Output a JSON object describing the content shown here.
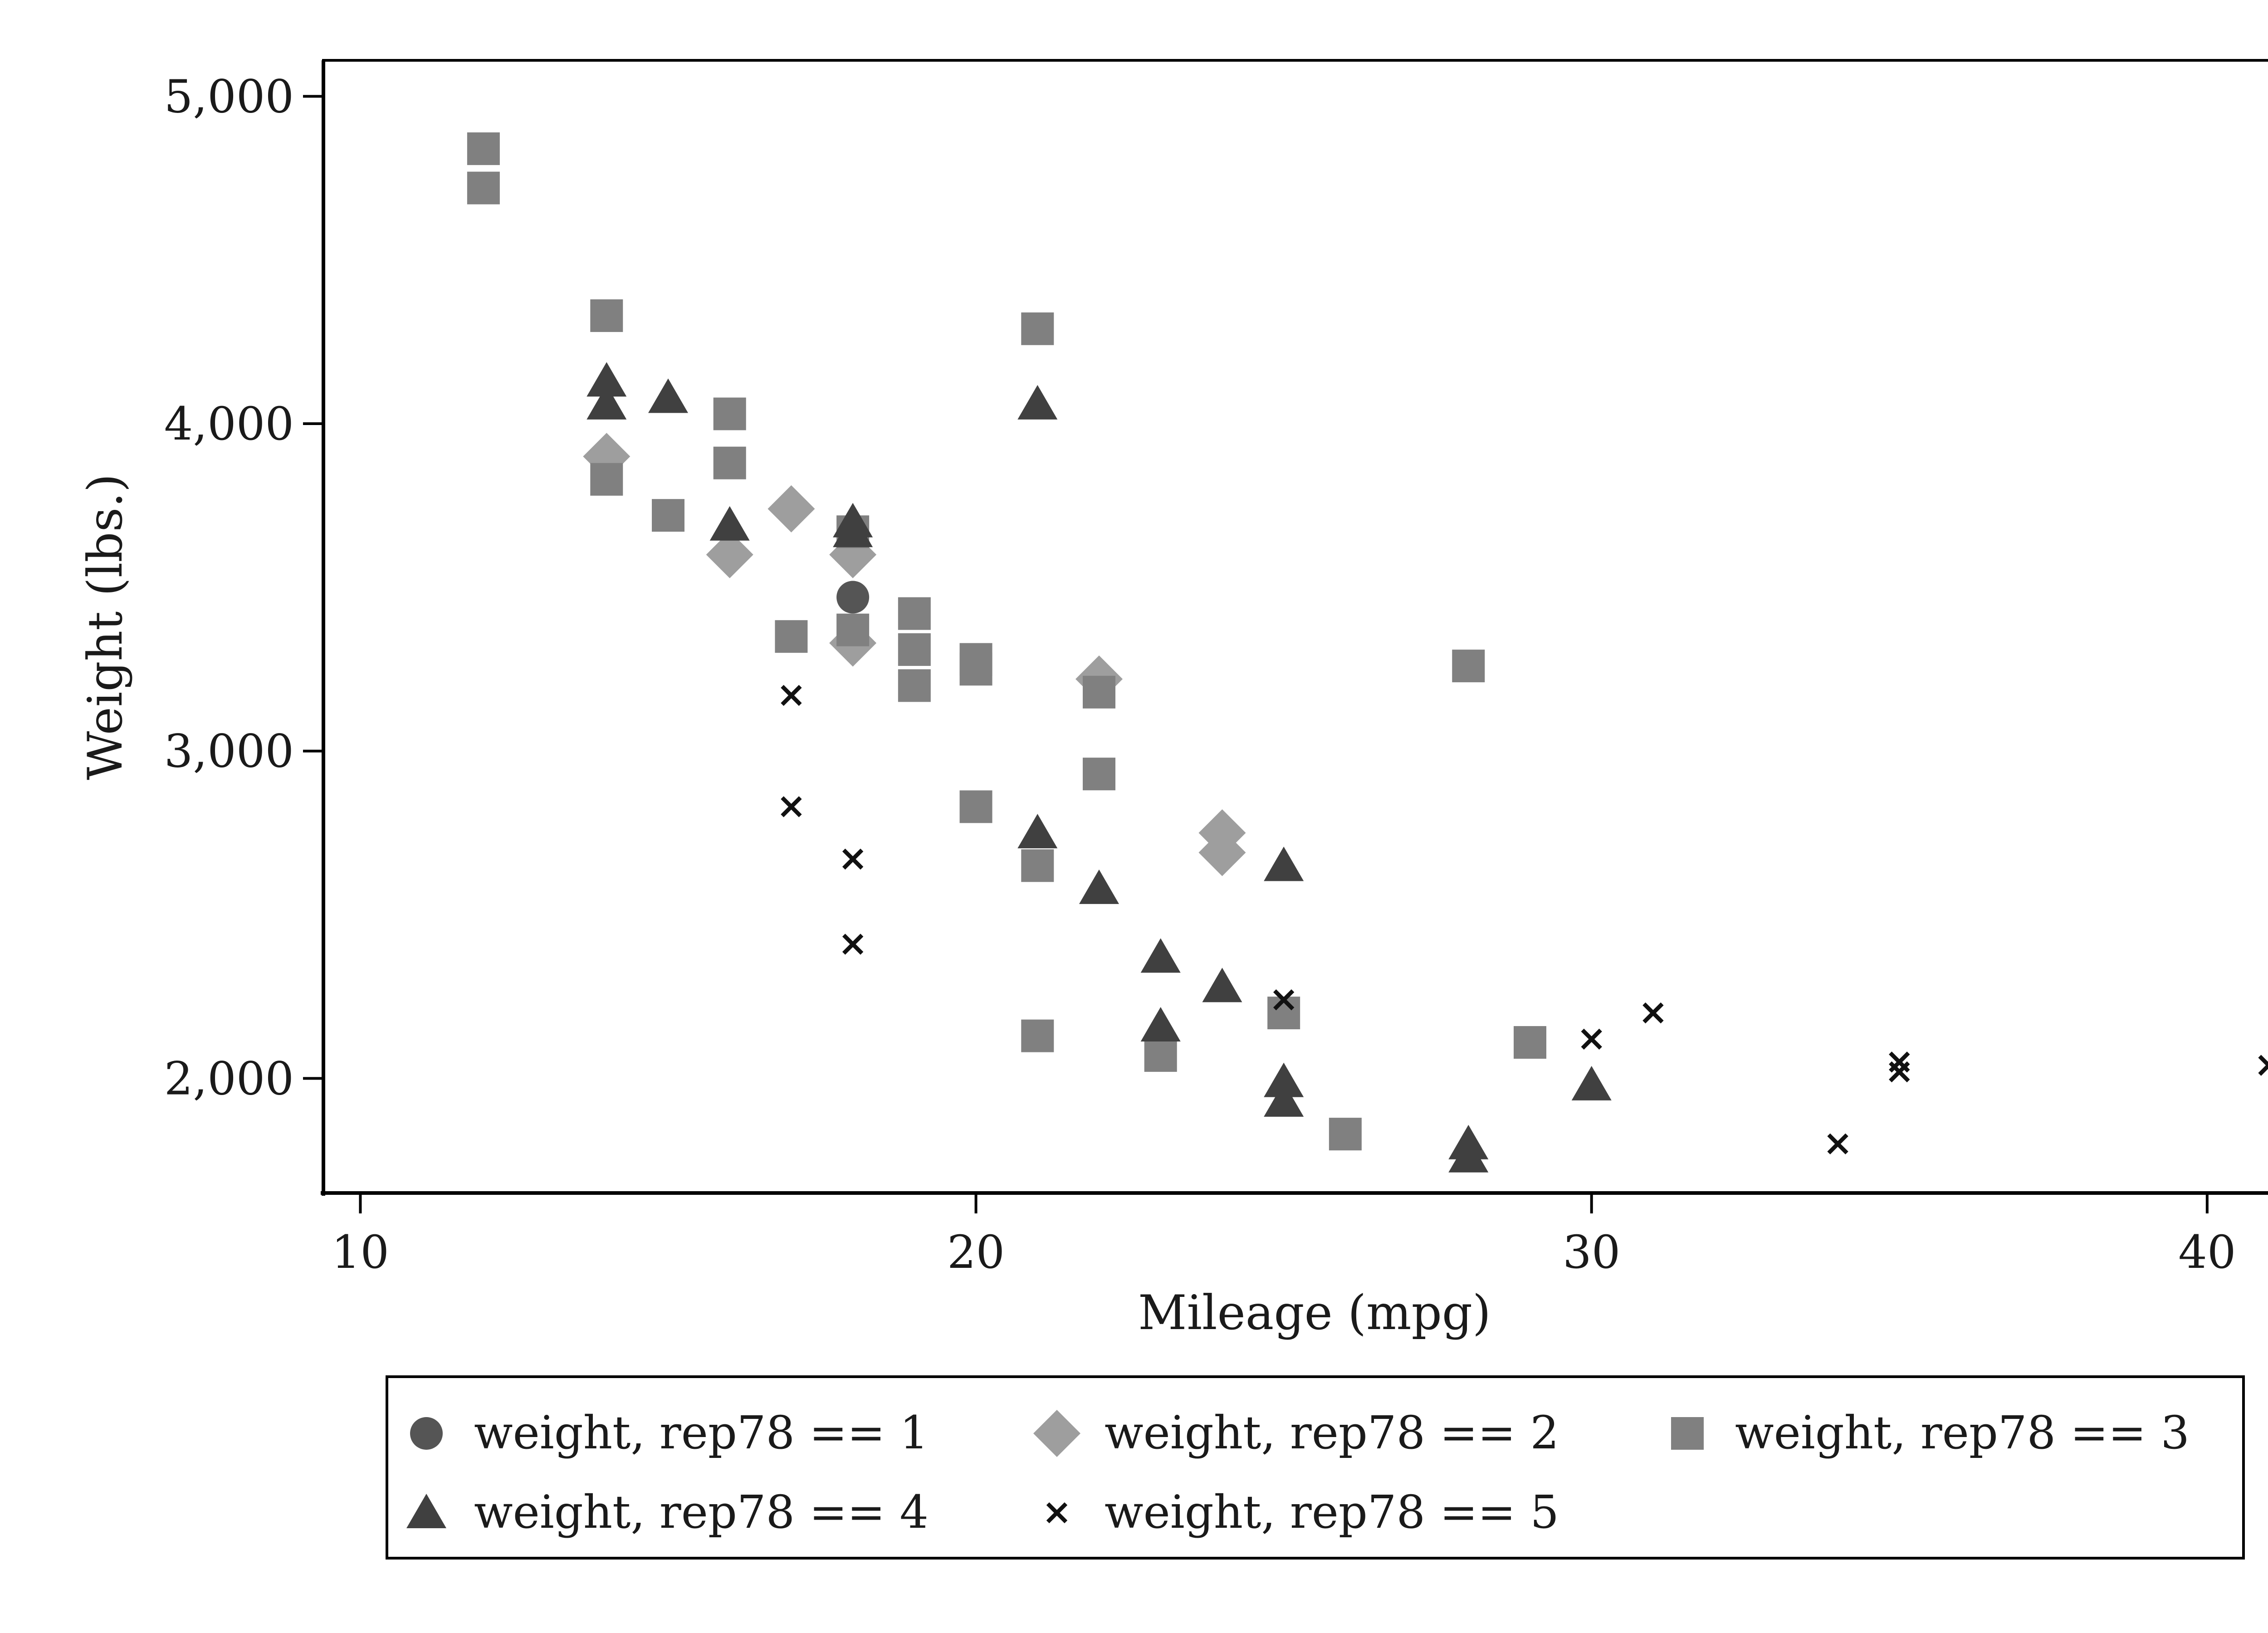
{
  "chart_data": {
    "type": "scatter",
    "xlabel": "Mileage (mpg)",
    "ylabel": "Weight (lbs.)",
    "xlim": [
      9.4,
      41.6
    ],
    "ylim": [
      1650,
      5110
    ],
    "xticks": [
      10,
      20,
      30,
      40
    ],
    "yticks": [
      2000,
      3000,
      4000,
      5000
    ],
    "xtick_labels": [
      "10",
      "20",
      "30",
      "40"
    ],
    "ytick_labels": [
      "2,000",
      "3,000",
      "4,000",
      "5,000"
    ],
    "grid": false,
    "legend_position": "bottom",
    "colors": {
      "rep1": "#555555",
      "rep2": "#9e9e9e",
      "rep3": "#808080",
      "rep4": "#404040",
      "rep5": "#111111"
    },
    "series": [
      {
        "name": "weight, rep78 == 1",
        "marker": "circle",
        "points": [
          [
            18,
            3470
          ],
          [
            24,
            2750
          ]
        ]
      },
      {
        "name": "weight, rep78 == 2",
        "marker": "diamond",
        "points": [
          [
            14,
            3900
          ],
          [
            16,
            3600
          ],
          [
            17,
            3740
          ],
          [
            18,
            3600
          ],
          [
            18,
            3330
          ],
          [
            22,
            3220
          ],
          [
            24,
            2750
          ],
          [
            24,
            2690
          ]
        ]
      },
      {
        "name": "weight, rep78 == 3",
        "marker": "square",
        "points": [
          [
            12,
            4840
          ],
          [
            12,
            4720
          ],
          [
            14,
            4330
          ],
          [
            14,
            3830
          ],
          [
            15,
            3720
          ],
          [
            16,
            4030
          ],
          [
            16,
            3880
          ],
          [
            17,
            3350
          ],
          [
            18,
            3670
          ],
          [
            18,
            3370
          ],
          [
            19,
            3420
          ],
          [
            19,
            3310
          ],
          [
            19,
            3200
          ],
          [
            20,
            3280
          ],
          [
            20,
            3250
          ],
          [
            20,
            2830
          ],
          [
            21,
            4290
          ],
          [
            21,
            2650
          ],
          [
            21,
            2130
          ],
          [
            22,
            3180
          ],
          [
            22,
            2930
          ],
          [
            23,
            2070
          ],
          [
            25,
            2200
          ],
          [
            26,
            1830
          ],
          [
            28,
            3260
          ],
          [
            29,
            2110
          ]
        ]
      },
      {
        "name": "weight, rep78 == 4",
        "marker": "triangle",
        "points": [
          [
            14,
            4130
          ],
          [
            14,
            4060
          ],
          [
            15,
            4080
          ],
          [
            16,
            3690
          ],
          [
            18,
            3700
          ],
          [
            18,
            3670
          ],
          [
            21,
            4060
          ],
          [
            21,
            2750
          ],
          [
            22,
            2580
          ],
          [
            23,
            2370
          ],
          [
            23,
            2160
          ],
          [
            24,
            2280
          ],
          [
            25,
            2650
          ],
          [
            25,
            1990
          ],
          [
            25,
            1930
          ],
          [
            28,
            1800
          ],
          [
            28,
            1760
          ],
          [
            30,
            1980
          ]
        ]
      },
      {
        "name": "weight, rep78 == 5",
        "marker": "x",
        "points": [
          [
            17,
            3170
          ],
          [
            17,
            2830
          ],
          [
            18,
            2670
          ],
          [
            18,
            2410
          ],
          [
            25,
            2240
          ],
          [
            30,
            2120
          ],
          [
            31,
            2200
          ],
          [
            34,
            1800
          ],
          [
            35,
            2050
          ],
          [
            35,
            2020
          ],
          [
            41,
            2040
          ]
        ]
      }
    ]
  }
}
